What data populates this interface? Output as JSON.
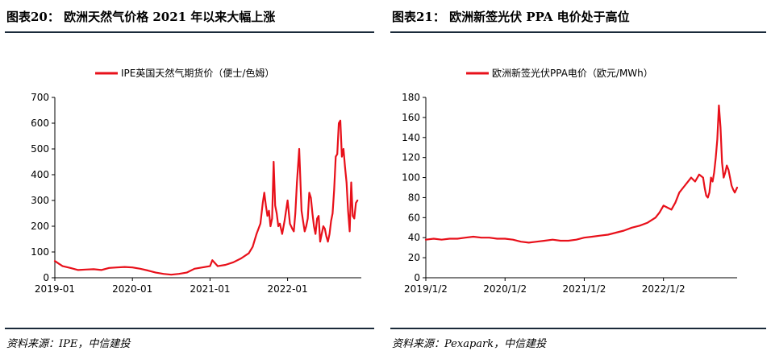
{
  "panels": [
    {
      "title": "图表20： 欧洲天然气价格 2021 年以来大幅上涨",
      "source": "资料来源：IPE，中信建投"
    },
    {
      "title": "图表21： 欧洲新签光伏 PPA 电价处于高位",
      "source": "资料来源：Pexapark，中信建投"
    }
  ],
  "colors": {
    "series": "#e8101a",
    "rule": "#1a2a3a",
    "axis": "#000000"
  },
  "chart_data": [
    {
      "type": "line",
      "title": "",
      "series_name": "IPE英国天然气期货价（便士/色姆）",
      "xlabel": "",
      "ylabel": "",
      "ylim": [
        0,
        700
      ],
      "yticks": [
        0,
        100,
        200,
        300,
        400,
        500,
        600,
        700
      ],
      "xlim": [
        2019.0,
        2022.95
      ],
      "xticks": [
        {
          "value": 2019.0,
          "label": "2019-01"
        },
        {
          "value": 2020.0,
          "label": "2020-01"
        },
        {
          "value": 2021.0,
          "label": "2021-01"
        },
        {
          "value": 2022.0,
          "label": "2022-01"
        }
      ],
      "x": [
        2019.0,
        2019.05,
        2019.1,
        2019.2,
        2019.3,
        2019.4,
        2019.5,
        2019.6,
        2019.7,
        2019.8,
        2019.9,
        2020.0,
        2020.1,
        2020.2,
        2020.3,
        2020.4,
        2020.5,
        2020.6,
        2020.7,
        2020.8,
        2020.9,
        2021.0,
        2021.03,
        2021.1,
        2021.2,
        2021.3,
        2021.4,
        2021.5,
        2021.55,
        2021.6,
        2021.65,
        2021.68,
        2021.7,
        2021.72,
        2021.74,
        2021.76,
        2021.78,
        2021.8,
        2021.82,
        2021.84,
        2021.86,
        2021.88,
        2021.9,
        2021.93,
        2021.96,
        2022.0,
        2022.03,
        2022.06,
        2022.08,
        2022.1,
        2022.12,
        2022.15,
        2022.18,
        2022.2,
        2022.22,
        2022.24,
        2022.26,
        2022.28,
        2022.3,
        2022.32,
        2022.34,
        2022.36,
        2022.38,
        2022.4,
        2022.42,
        2022.44,
        2022.46,
        2022.48,
        2022.5,
        2022.52,
        2022.54,
        2022.56,
        2022.58,
        2022.6,
        2022.62,
        2022.64,
        2022.66,
        2022.68,
        2022.7,
        2022.72,
        2022.74,
        2022.76,
        2022.78,
        2022.8,
        2022.82,
        2022.84,
        2022.86,
        2022.88,
        2022.9
      ],
      "values": [
        65,
        55,
        45,
        38,
        30,
        32,
        33,
        30,
        38,
        40,
        42,
        40,
        35,
        28,
        20,
        15,
        12,
        15,
        20,
        35,
        40,
        45,
        68,
        45,
        50,
        60,
        75,
        95,
        120,
        170,
        210,
        290,
        330,
        280,
        240,
        260,
        200,
        230,
        450,
        280,
        250,
        200,
        210,
        170,
        220,
        300,
        210,
        190,
        180,
        250,
        370,
        500,
        260,
        220,
        180,
        200,
        230,
        330,
        310,
        250,
        200,
        170,
        230,
        240,
        140,
        170,
        200,
        190,
        160,
        140,
        170,
        220,
        250,
        340,
        470,
        480,
        600,
        610,
        470,
        500,
        430,
        370,
        260,
        180,
        370,
        240,
        230,
        290,
        300
      ]
    },
    {
      "type": "line",
      "title": "",
      "series_name": "欧洲新签光伏PPA电价（欧元/MWh）",
      "xlabel": "",
      "ylabel": "",
      "ylim": [
        0,
        180
      ],
      "yticks": [
        0,
        20,
        40,
        60,
        80,
        100,
        120,
        140,
        160,
        180
      ],
      "xlim": [
        2019.0,
        2022.93
      ],
      "xticks": [
        {
          "value": 2019.0,
          "label": "2019/1/2"
        },
        {
          "value": 2020.0,
          "label": "2020/1/2"
        },
        {
          "value": 2021.0,
          "label": "2021/1/2"
        },
        {
          "value": 2022.0,
          "label": "2022/1/2"
        }
      ],
      "x": [
        2019.0,
        2019.1,
        2019.2,
        2019.3,
        2019.4,
        2019.5,
        2019.6,
        2019.7,
        2019.8,
        2019.9,
        2020.0,
        2020.1,
        2020.2,
        2020.3,
        2020.4,
        2020.5,
        2020.6,
        2020.7,
        2020.8,
        2020.9,
        2021.0,
        2021.1,
        2021.2,
        2021.3,
        2021.4,
        2021.5,
        2021.6,
        2021.7,
        2021.8,
        2021.9,
        2021.95,
        2022.0,
        2022.05,
        2022.1,
        2022.15,
        2022.2,
        2022.25,
        2022.3,
        2022.35,
        2022.4,
        2022.45,
        2022.5,
        2022.52,
        2022.54,
        2022.56,
        2022.58,
        2022.6,
        2022.62,
        2022.64,
        2022.66,
        2022.68,
        2022.7,
        2022.72,
        2022.74,
        2022.76,
        2022.78,
        2022.8,
        2022.82,
        2022.84,
        2022.86,
        2022.88,
        2022.9,
        2022.93
      ],
      "values": [
        38,
        39,
        38,
        39,
        39,
        40,
        41,
        40,
        40,
        39,
        39,
        38,
        36,
        35,
        36,
        37,
        38,
        37,
        37,
        38,
        40,
        41,
        42,
        43,
        45,
        47,
        50,
        52,
        55,
        60,
        65,
        72,
        70,
        68,
        75,
        85,
        90,
        95,
        100,
        96,
        103,
        100,
        90,
        82,
        80,
        85,
        100,
        96,
        105,
        120,
        138,
        172,
        150,
        115,
        100,
        105,
        112,
        108,
        100,
        92,
        88,
        85,
        90
      ]
    }
  ]
}
